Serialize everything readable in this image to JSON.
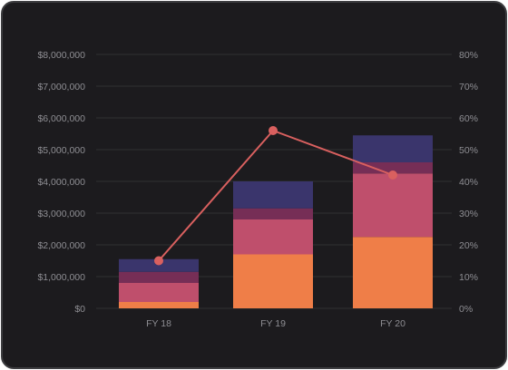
{
  "chart_data": {
    "type": "bar",
    "stacked": true,
    "categories": [
      "FY 18",
      "FY 19",
      "FY 20"
    ],
    "series": [
      {
        "values": [
          200000,
          1700000,
          2250000
        ],
        "color": "#ef7e48"
      },
      {
        "values": [
          600000,
          1100000,
          2000000
        ],
        "color": "#bf4f6c"
      },
      {
        "values": [
          350000,
          350000,
          350000
        ],
        "color": "#762e56"
      },
      {
        "values": [
          400000,
          850000,
          850000
        ],
        "color": "#3a356c"
      }
    ],
    "line_series": {
      "axis": "right",
      "values": [
        15,
        56,
        42
      ],
      "color": "#d9605f"
    },
    "y_left": {
      "min": 0,
      "max": 8000000,
      "step": 1000000,
      "tick_labels": [
        "$0",
        "$1,000,000",
        "$2,000,000",
        "$3,000,000",
        "$4,000,000",
        "$5,000,000",
        "$6,000,000",
        "$7,000,000",
        "$8,000,000"
      ]
    },
    "y_right": {
      "min": 0,
      "max": 80,
      "step": 10,
      "tick_labels": [
        "0%",
        "10%",
        "20%",
        "30%",
        "40%",
        "50%",
        "60%",
        "70%",
        "80%"
      ]
    },
    "grid": true
  }
}
